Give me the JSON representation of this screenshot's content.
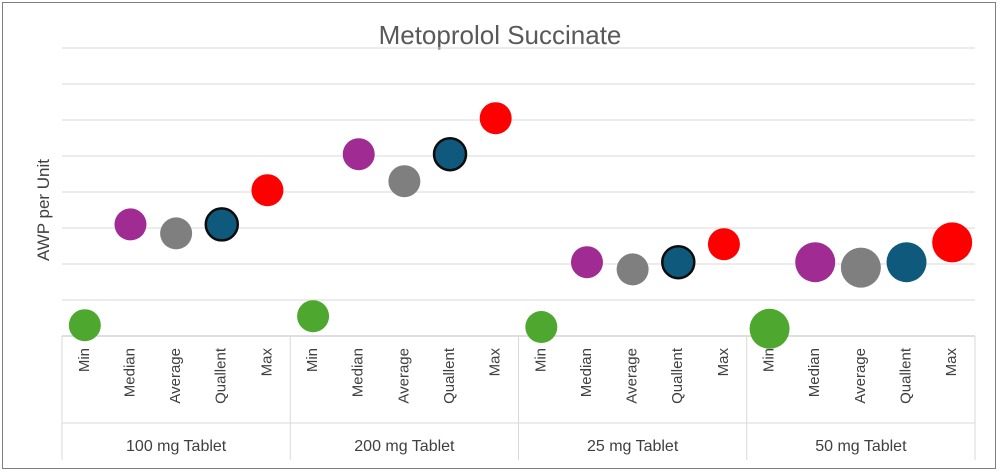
{
  "chart_data": {
    "type": "scatter",
    "title": "Metoprolol Succinate",
    "ylabel": "AWP per Unit",
    "xlabel": "",
    "ylim": [
      0,
      8
    ],
    "grid": true,
    "legend": "none",
    "groups": [
      {
        "label": "100 mg Tablet",
        "points": [
          {
            "category": "Min",
            "value": 0.3,
            "color": "#4ea72e",
            "size": 1.0
          },
          {
            "category": "Median",
            "value": 3.1,
            "color": "#a02b93",
            "size": 1.0
          },
          {
            "category": "Average",
            "value": 2.85,
            "color": "#7f7f7f",
            "size": 1.0
          },
          {
            "category": "Quallent",
            "value": 3.1,
            "color": "#0f5a7c",
            "size": 1.0,
            "outlined": true
          },
          {
            "category": "Max",
            "value": 4.05,
            "color": "#ff0000",
            "size": 1.0
          }
        ]
      },
      {
        "label": "200 mg Tablet",
        "points": [
          {
            "category": "Min",
            "value": 0.55,
            "color": "#4ea72e",
            "size": 1.0
          },
          {
            "category": "Median",
            "value": 5.05,
            "color": "#a02b93",
            "size": 1.0
          },
          {
            "category": "Average",
            "value": 4.3,
            "color": "#7f7f7f",
            "size": 1.0
          },
          {
            "category": "Quallent",
            "value": 5.05,
            "color": "#0f5a7c",
            "size": 1.0,
            "outlined": true
          },
          {
            "category": "Max",
            "value": 6.05,
            "color": "#ff0000",
            "size": 1.0
          }
        ]
      },
      {
        "label": "25 mg Tablet",
        "points": [
          {
            "category": "Min",
            "value": 0.25,
            "color": "#4ea72e",
            "size": 1.0
          },
          {
            "category": "Median",
            "value": 2.05,
            "color": "#a02b93",
            "size": 1.0
          },
          {
            "category": "Average",
            "value": 1.85,
            "color": "#7f7f7f",
            "size": 1.0
          },
          {
            "category": "Quallent",
            "value": 2.05,
            "color": "#0f5a7c",
            "size": 1.0,
            "outlined": true
          },
          {
            "category": "Max",
            "value": 2.55,
            "color": "#ff0000",
            "size": 1.0
          }
        ]
      },
      {
        "label": "50 mg Tablet",
        "points": [
          {
            "category": "Min",
            "value": 0.2,
            "color": "#4ea72e",
            "size": 1.25
          },
          {
            "category": "Median",
            "value": 2.05,
            "color": "#a02b93",
            "size": 1.25
          },
          {
            "category": "Average",
            "value": 1.9,
            "color": "#7f7f7f",
            "size": 1.25
          },
          {
            "category": "Quallent",
            "value": 2.05,
            "color": "#0f5a7c",
            "size": 1.25
          },
          {
            "category": "Max",
            "value": 2.6,
            "color": "#ff0000",
            "size": 1.25
          }
        ]
      }
    ]
  }
}
